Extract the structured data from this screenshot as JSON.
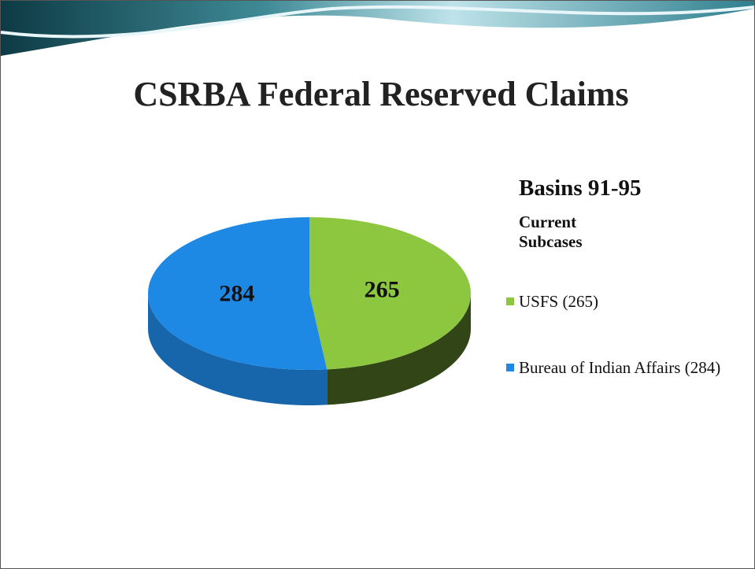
{
  "chart_data": {
    "type": "pie",
    "title": "CSRBA Federal Reserved Claims",
    "subtitle": "Basins 91-95",
    "legend_title": "Current Subcases",
    "categories": [
      "USFS (265)",
      "Bureau of Indian Affairs (284)"
    ],
    "values": [
      265,
      284
    ],
    "colors": [
      "#8dc63f",
      "#1e88e5"
    ],
    "legend": "right"
  }
}
